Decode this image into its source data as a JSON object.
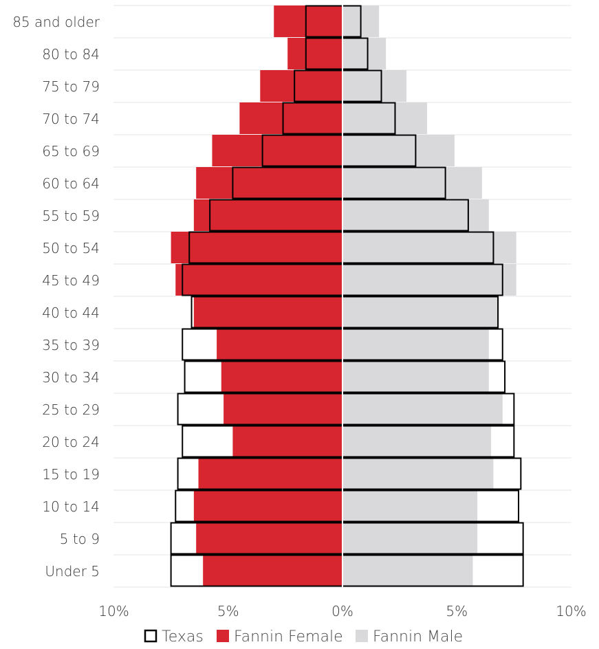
{
  "chart_data": {
    "type": "bar",
    "orientation": "horizontal",
    "categories": [
      "85 and older",
      "80 to 84",
      "75 to 79",
      "70 to 74",
      "65 to 69",
      "60 to 64",
      "55 to 59",
      "50 to 54",
      "45 to 49",
      "40 to 44",
      "35 to 39",
      "30 to 34",
      "25 to 29",
      "20 to 24",
      "15 to 19",
      "10 to 14",
      "5 to 9",
      "Under 5"
    ],
    "xlim": [
      -10,
      10
    ],
    "x_ticks": [
      "10%",
      "5%",
      "0%",
      "5%",
      "10%"
    ],
    "legend_position": "bottom",
    "grid": true,
    "series": [
      {
        "name": "Fannin Female",
        "color": "#d7262f",
        "values": [
          -3.0,
          -2.4,
          -3.6,
          -4.5,
          -5.7,
          -6.4,
          -6.5,
          -7.5,
          -7.3,
          -6.5,
          -5.5,
          -5.3,
          -5.2,
          -4.8,
          -6.3,
          -6.5,
          -6.4,
          -6.1
        ]
      },
      {
        "name": "Fannin Male",
        "color": "#d9d9db",
        "values": [
          1.6,
          1.9,
          2.8,
          3.7,
          4.9,
          6.1,
          6.4,
          7.6,
          7.6,
          6.8,
          6.4,
          6.4,
          7.0,
          6.5,
          6.6,
          5.9,
          5.9,
          5.7
        ]
      },
      {
        "name": "Texas",
        "color": "#000000",
        "female": [
          -1.6,
          -1.6,
          -2.1,
          -2.6,
          -3.5,
          -4.8,
          -5.8,
          -6.7,
          -7.0,
          -6.6,
          -7.0,
          -6.9,
          -7.2,
          -7.0,
          -7.2,
          -7.3,
          -7.5,
          -7.5
        ],
        "male": [
          0.8,
          1.1,
          1.7,
          2.3,
          3.2,
          4.5,
          5.5,
          6.6,
          7.0,
          6.8,
          7.0,
          7.1,
          7.5,
          7.5,
          7.8,
          7.7,
          7.9,
          7.9
        ]
      }
    ]
  }
}
